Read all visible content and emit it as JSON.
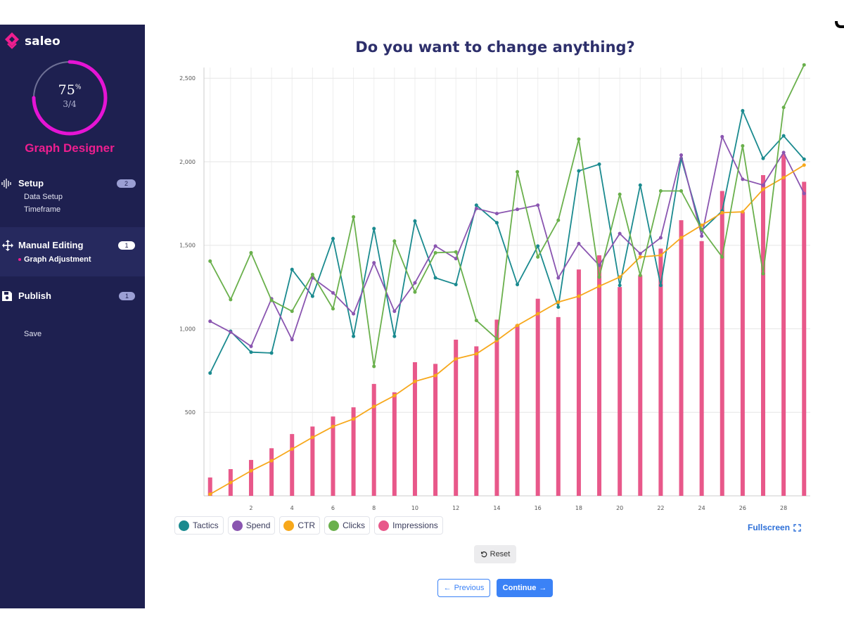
{
  "app": {
    "brand": "saleo",
    "brand_color": "#ee1e8f",
    "sidebar_bg": "#1e2050"
  },
  "progress": {
    "percent": "75",
    "percent_sign": "%",
    "fraction": "3/4",
    "value": 0.75
  },
  "tool": {
    "title": "Graph Designer"
  },
  "nav": {
    "setup": {
      "label": "Setup",
      "badge": "2",
      "items": [
        "Data Setup",
        "Timeframe"
      ]
    },
    "manual": {
      "label": "Manual Editing",
      "badge": "1",
      "items": [
        "Graph Adjustment"
      ]
    },
    "publish": {
      "label": "Publish",
      "badge": "1",
      "items": [
        "Save"
      ]
    }
  },
  "main": {
    "title": "Do you want to change anything?"
  },
  "controls": {
    "fullscreen": "Fullscreen",
    "reset": "Reset",
    "previous": "Previous",
    "continue": "Continue"
  },
  "chart_data": {
    "type": "line",
    "title": "",
    "xlabel": "",
    "ylabel": "",
    "x": [
      0,
      1,
      2,
      3,
      4,
      5,
      6,
      7,
      8,
      9,
      10,
      11,
      12,
      13,
      14,
      15,
      16,
      17,
      18,
      19,
      20,
      21,
      22,
      23,
      24,
      25,
      26,
      27,
      28,
      29
    ],
    "x_ticks": [
      2,
      4,
      6,
      8,
      10,
      12,
      14,
      16,
      18,
      20,
      22,
      24,
      26,
      28
    ],
    "y_ticks": [
      500,
      1000,
      1500,
      2000,
      2500
    ],
    "y_tick_labels": [
      "500",
      "1,000",
      "1,500",
      "2,000",
      "2,500"
    ],
    "ylim": [
      0,
      2500
    ],
    "grid": true,
    "legend_position": "bottom-left",
    "series": [
      {
        "name": "Tactics",
        "color": "#1a8a8f",
        "kind": "line",
        "values": [
          735,
          985,
          860,
          855,
          1355,
          1195,
          1540,
          955,
          1600,
          955,
          1645,
          1305,
          1265,
          1740,
          1635,
          1265,
          1495,
          1130,
          1945,
          1985,
          1260,
          1860,
          1260,
          2020,
          1590,
          1705,
          2305,
          2020,
          2155,
          2015
        ]
      },
      {
        "name": "Spend",
        "color": "#8a55b0",
        "kind": "line",
        "values": [
          1045,
          980,
          895,
          1180,
          935,
          1305,
          1215,
          1090,
          1395,
          1105,
          1275,
          1495,
          1420,
          1720,
          1690,
          1715,
          1740,
          1305,
          1510,
          1380,
          1570,
          1450,
          1545,
          2040,
          1555,
          2150,
          1895,
          1860,
          2055,
          1810
        ]
      },
      {
        "name": "CTR",
        "color": "#f7a81b",
        "kind": "line",
        "values": [
          10,
          80,
          150,
          210,
          280,
          350,
          415,
          460,
          535,
          600,
          685,
          720,
          820,
          850,
          930,
          1020,
          1090,
          1160,
          1195,
          1255,
          1310,
          1430,
          1440,
          1545,
          1620,
          1695,
          1700,
          1835,
          1905,
          1980
        ]
      },
      {
        "name": "Clicks",
        "color": "#6ab04c",
        "kind": "line",
        "values": [
          1405,
          1175,
          1455,
          1170,
          1105,
          1325,
          1120,
          1670,
          775,
          1525,
          1220,
          1455,
          1460,
          1050,
          940,
          1940,
          1430,
          1650,
          2135,
          1310,
          1805,
          1320,
          1825,
          1825,
          1595,
          1430,
          2095,
          1330,
          2325,
          2580
        ]
      },
      {
        "name": "Impressions",
        "color": "#e8588a",
        "kind": "bar",
        "values": [
          110,
          160,
          215,
          285,
          370,
          415,
          475,
          530,
          670,
          620,
          800,
          790,
          935,
          895,
          1055,
          1025,
          1180,
          1070,
          1355,
          1440,
          1250,
          1320,
          1480,
          1650,
          1525,
          1825,
          1700,
          1920,
          2045,
          1880
        ]
      }
    ]
  }
}
